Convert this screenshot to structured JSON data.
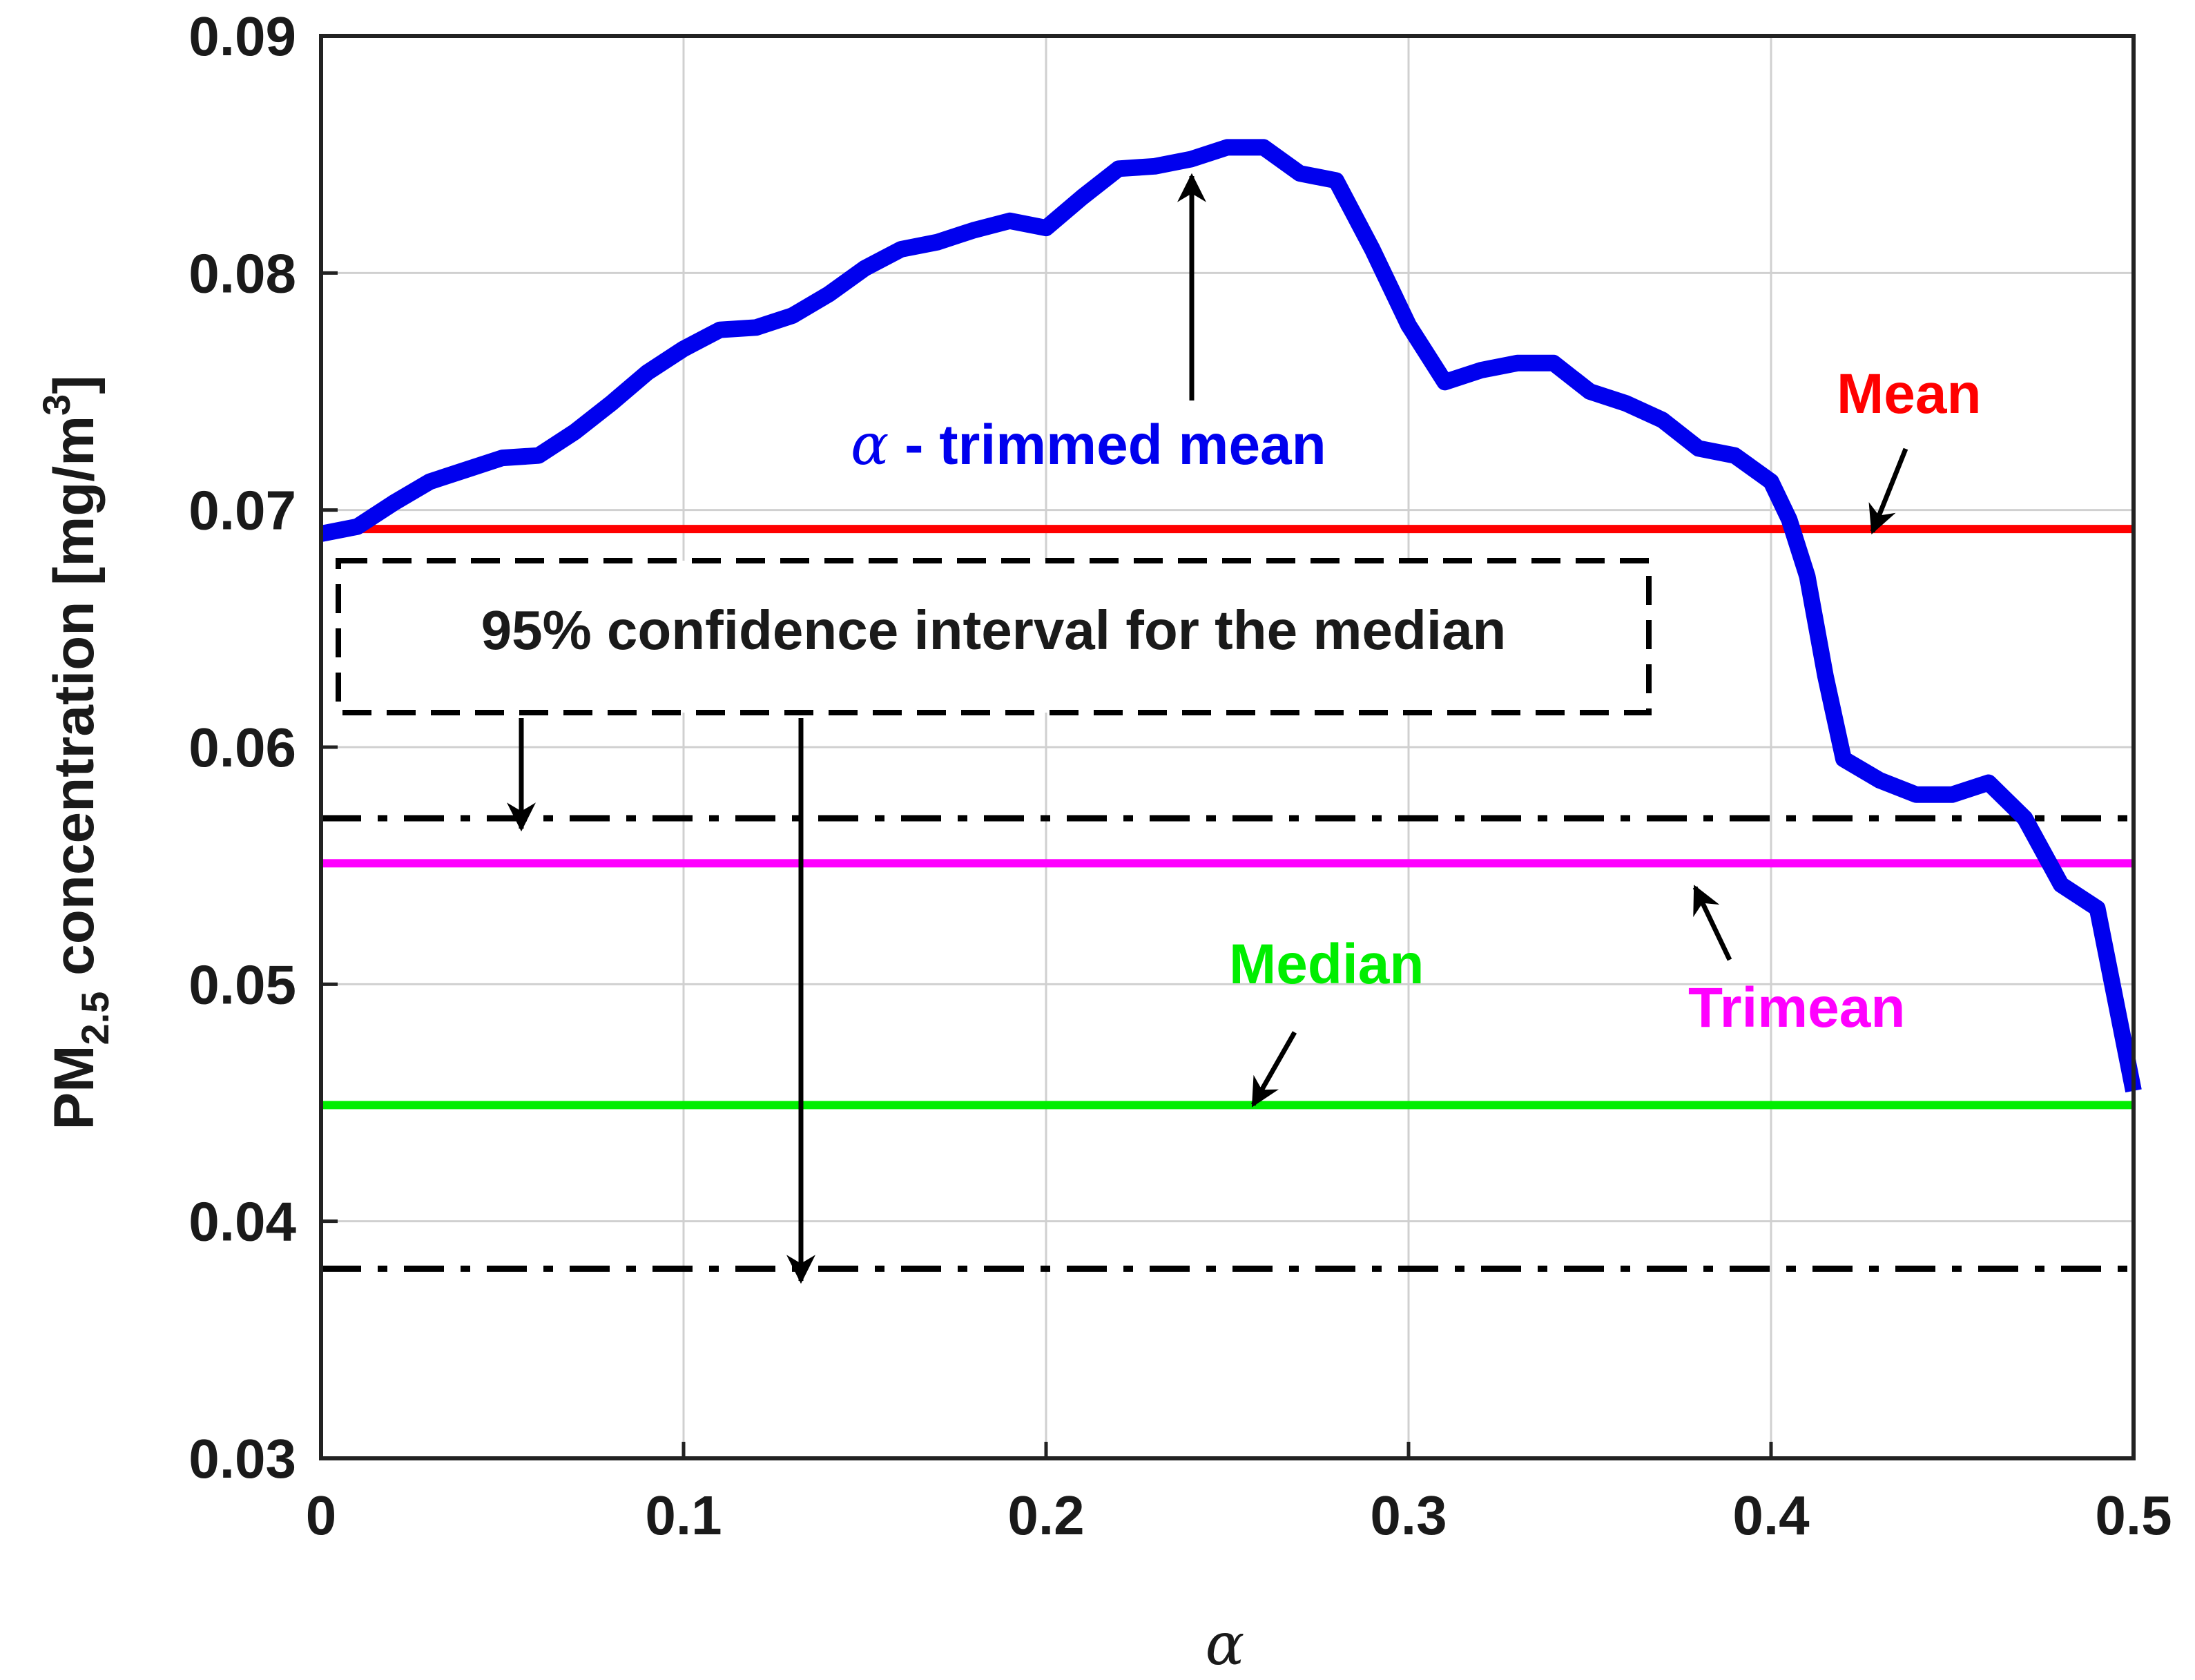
{
  "chart_data": {
    "type": "line",
    "xlabel": "α",
    "ylabel": {
      "prefix": "PM",
      "subscript": "2.5",
      "middle": " concentration [mg/m",
      "superscript": "3",
      "suffix": "]"
    },
    "xlim": [
      0,
      0.5
    ],
    "ylim": [
      0.03,
      0.09
    ],
    "xticks": [
      0,
      0.1,
      0.2,
      0.3,
      0.4,
      0.5
    ],
    "xtick_labels": [
      "0",
      "0.1",
      "0.2",
      "0.3",
      "0.4",
      "0.5"
    ],
    "yticks": [
      0.03,
      0.04,
      0.05,
      0.06,
      0.07,
      0.08,
      0.09
    ],
    "ytick_labels": [
      "0.03",
      "0.04",
      "0.05",
      "0.06",
      "0.07",
      "0.08",
      "0.09"
    ],
    "grid": true,
    "series": [
      {
        "name": "α - trimmed mean",
        "color": "#0000ee",
        "x": [
          0,
          0.01,
          0.02,
          0.03,
          0.04,
          0.05,
          0.06,
          0.07,
          0.08,
          0.09,
          0.1,
          0.11,
          0.12,
          0.13,
          0.14,
          0.15,
          0.16,
          0.17,
          0.18,
          0.19,
          0.2,
          0.21,
          0.22,
          0.23,
          0.24,
          0.25,
          0.26,
          0.27,
          0.28,
          0.29,
          0.3,
          0.31,
          0.32,
          0.33,
          0.34,
          0.35,
          0.36,
          0.37,
          0.38,
          0.39,
          0.4,
          0.405,
          0.41,
          0.415,
          0.42,
          0.43,
          0.44,
          0.45,
          0.46,
          0.47,
          0.48,
          0.49,
          0.5
        ],
        "y": [
          0.069,
          0.0693,
          0.0703,
          0.0712,
          0.0717,
          0.0722,
          0.0723,
          0.0733,
          0.0745,
          0.0758,
          0.0768,
          0.0776,
          0.0777,
          0.0782,
          0.0791,
          0.0802,
          0.081,
          0.0813,
          0.0818,
          0.0822,
          0.0819,
          0.0832,
          0.0844,
          0.0845,
          0.0848,
          0.0853,
          0.0853,
          0.0842,
          0.0839,
          0.081,
          0.0778,
          0.0754,
          0.0759,
          0.0762,
          0.0762,
          0.075,
          0.0745,
          0.0738,
          0.0726,
          0.0723,
          0.0712,
          0.0696,
          0.0672,
          0.063,
          0.0595,
          0.0586,
          0.058,
          0.058,
          0.0585,
          0.057,
          0.0542,
          0.0532,
          0.0455
        ]
      }
    ],
    "reference_lines": [
      {
        "name": "Mean",
        "value": 0.0692,
        "color": "#ff0000",
        "style": "solid"
      },
      {
        "name": "Trimean",
        "value": 0.0551,
        "color": "#ff00ff",
        "style": "solid"
      },
      {
        "name": "Median",
        "value": 0.0449,
        "color": "#00ee00",
        "style": "solid"
      },
      {
        "name": "CI upper",
        "value": 0.057,
        "color": "#000000",
        "style": "dashdot"
      },
      {
        "name": "CI lower",
        "value": 0.038,
        "color": "#000000",
        "style": "dashdot"
      }
    ],
    "annotations": {
      "trimmed_mean": {
        "greek": "α",
        "text": " - trimmed mean",
        "color": "#0000ee"
      },
      "mean": {
        "text": "Mean",
        "color": "#ff0000"
      },
      "median": {
        "text": "Median",
        "color": "#00ee00"
      },
      "trimean": {
        "text": "Trimean",
        "color": "#ff00ff"
      },
      "ci_box": {
        "text": "95% confidence interval for the median"
      }
    }
  }
}
